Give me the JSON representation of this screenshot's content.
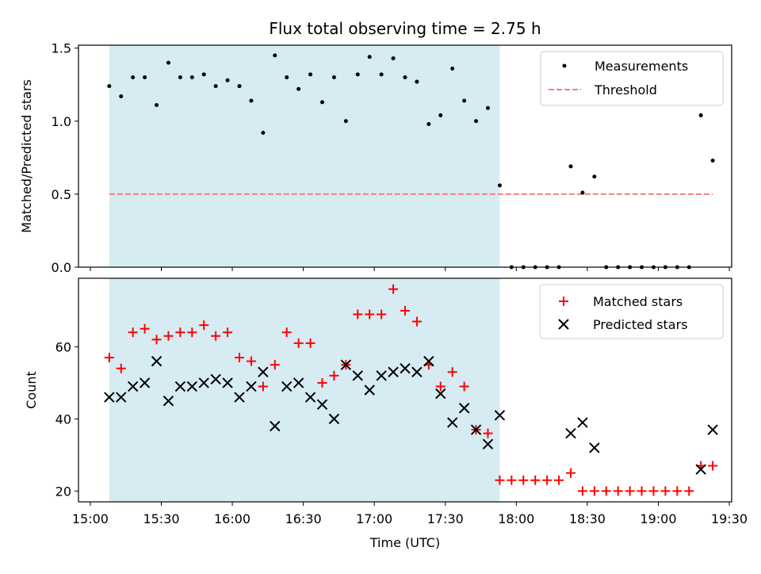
{
  "chart_data": {
    "type": "scatter",
    "title": "Flux total observing time = 2.75 h",
    "xlabel": "Time (UTC)",
    "xticks": [
      "15:00",
      "15:30",
      "16:00",
      "16:30",
      "17:00",
      "17:30",
      "18:00",
      "18:30",
      "19:00",
      "19:30"
    ],
    "xlim_minutes": [
      895,
      1171
    ],
    "shaded_region_minutes": [
      908,
      1073
    ],
    "shade_color": "#add8e6",
    "panels": [
      {
        "ylabel": "Matched/Predicted stars",
        "ylim": [
          0,
          1.52
        ],
        "yticks": [
          "0.0",
          "0.5",
          "1.0",
          "1.5"
        ],
        "legend": "top-right",
        "series": [
          {
            "name": "Measurements",
            "marker": "dot",
            "color": "#000000",
            "x": [
              908,
              913,
              918,
              923,
              928,
              933,
              938,
              943,
              948,
              953,
              958,
              963,
              968,
              973,
              978,
              983,
              988,
              993,
              998,
              1003,
              1008,
              1013,
              1018,
              1023,
              1028,
              1033,
              1038,
              1043,
              1048,
              1053,
              1058,
              1063,
              1068,
              1073,
              1078,
              1083,
              1088,
              1093,
              1098,
              1103,
              1108,
              1113,
              1118,
              1123,
              1128,
              1133,
              1138,
              1143,
              1148,
              1153,
              1158,
              1163
            ],
            "y": [
              1.24,
              1.17,
              1.3,
              1.3,
              1.11,
              1.4,
              1.3,
              1.3,
              1.32,
              1.24,
              1.28,
              1.24,
              1.14,
              0.92,
              1.45,
              1.3,
              1.22,
              1.32,
              1.13,
              1.3,
              1.0,
              1.32,
              1.44,
              1.32,
              1.43,
              1.3,
              1.27,
              0.98,
              1.04,
              1.36,
              1.14,
              1.0,
              1.09,
              0.56,
              0,
              0,
              0,
              0,
              0,
              0.69,
              0.51,
              0.62,
              0,
              0,
              0,
              0,
              0,
              0,
              0,
              0,
              1.04,
              0.73
            ]
          },
          {
            "name": "Threshold",
            "marker": "dashed-line",
            "color": "#f08080",
            "x": [
              908,
              1163
            ],
            "y": [
              0.5,
              0.5
            ]
          }
        ]
      },
      {
        "ylabel": "Count",
        "ylim": [
          17,
          79
        ],
        "yticks": [
          "20",
          "40",
          "60"
        ],
        "legend": "top-right",
        "series": [
          {
            "name": "Matched stars",
            "marker": "plus",
            "color": "#ff0000",
            "x": [
              908,
              913,
              918,
              923,
              928,
              933,
              938,
              943,
              948,
              953,
              958,
              963,
              968,
              973,
              978,
              983,
              988,
              993,
              998,
              1003,
              1008,
              1013,
              1018,
              1023,
              1028,
              1033,
              1038,
              1043,
              1048,
              1053,
              1058,
              1063,
              1068,
              1073,
              1078,
              1083,
              1088,
              1093,
              1098,
              1103,
              1108,
              1113,
              1118,
              1123,
              1128,
              1133,
              1138,
              1143,
              1148,
              1153,
              1158,
              1163
            ],
            "y": [
              57,
              54,
              64,
              65,
              62,
              63,
              64,
              64,
              66,
              63,
              64,
              57,
              56,
              49,
              55,
              64,
              61,
              61,
              50,
              52,
              55,
              69,
              69,
              69,
              76,
              70,
              67,
              55,
              49,
              53,
              49,
              37,
              36,
              23,
              23,
              23,
              23,
              23,
              23,
              25,
              20,
              20,
              20,
              20,
              20,
              20,
              20,
              20,
              20,
              20,
              27,
              27
            ]
          },
          {
            "name": "Predicted stars",
            "marker": "x",
            "color": "#000000",
            "x": [
              908,
              913,
              918,
              923,
              928,
              933,
              938,
              943,
              948,
              953,
              958,
              963,
              968,
              973,
              978,
              983,
              988,
              993,
              998,
              1003,
              1008,
              1013,
              1018,
              1023,
              1028,
              1033,
              1038,
              1043,
              1048,
              1053,
              1058,
              1063,
              1068,
              1073,
              1103,
              1108,
              1113,
              1158,
              1163
            ],
            "y": [
              46,
              46,
              49,
              50,
              56,
              45,
              49,
              49,
              50,
              51,
              50,
              46,
              49,
              53,
              38,
              49,
              50,
              46,
              44,
              40,
              55,
              52,
              48,
              52,
              53,
              54,
              53,
              56,
              47,
              39,
              43,
              37,
              33,
              41,
              36,
              39,
              32,
              26,
              37
            ]
          }
        ]
      }
    ]
  }
}
